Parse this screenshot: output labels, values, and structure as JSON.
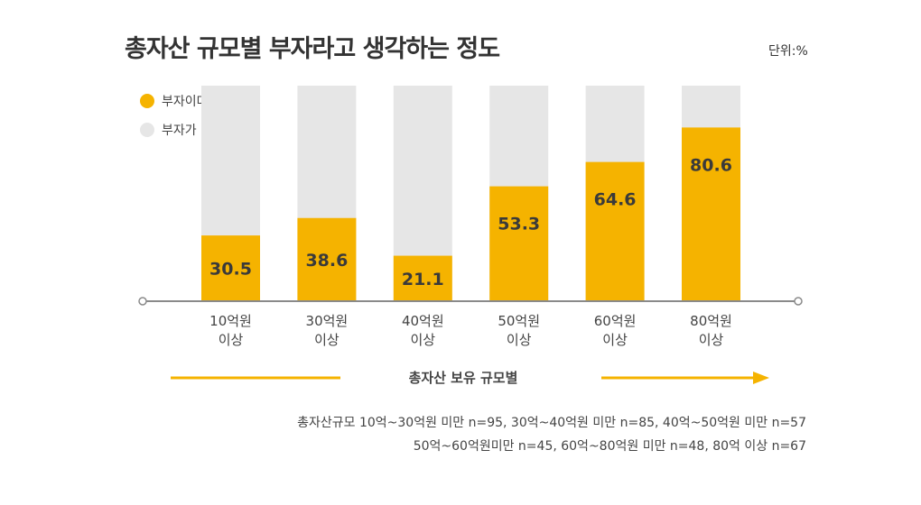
{
  "chart_data": {
    "type": "bar",
    "stacked": true,
    "title": "총자산 규모별 부자라고 생각하는 정도",
    "unit_label": "단위:%",
    "xlabel": "총자산 보유 규모별",
    "ylabel": "",
    "ylim": [
      0,
      100
    ],
    "grid": false,
    "legend_position": "top-left",
    "categories": [
      [
        "10억원",
        "이상"
      ],
      [
        "30억원",
        "이상"
      ],
      [
        "40억원",
        "이상"
      ],
      [
        "50억원",
        "이상"
      ],
      [
        "60억원",
        "이상"
      ],
      [
        "80억원",
        "이상"
      ]
    ],
    "series": [
      {
        "name": "부자이다",
        "values": [
          30.5,
          38.6,
          21.1,
          53.3,
          64.6,
          80.6
        ],
        "color": "#f5b300",
        "value_labels": [
          "30.5",
          "38.6",
          "21.1",
          "53.3",
          "64.6",
          "80.6"
        ]
      },
      {
        "name": "부자가 아니다",
        "values": [
          69.5,
          61.4,
          78.9,
          46.7,
          35.4,
          19.4
        ],
        "color": "#e6e6e6"
      }
    ],
    "notes": [
      "총자산규모 10억~30억원 미만 n=95,  30억~40억원 미만 n=85,  40억~50억원 미만 n=57",
      "50억~60억원미만 n=45,  60억~80억원 미만 n=48,  80억 이상 n=67"
    ]
  },
  "colors": {
    "accent": "#f5b300",
    "rest": "#e6e6e6",
    "axis": "#8a8a8a",
    "text": "#333333"
  }
}
